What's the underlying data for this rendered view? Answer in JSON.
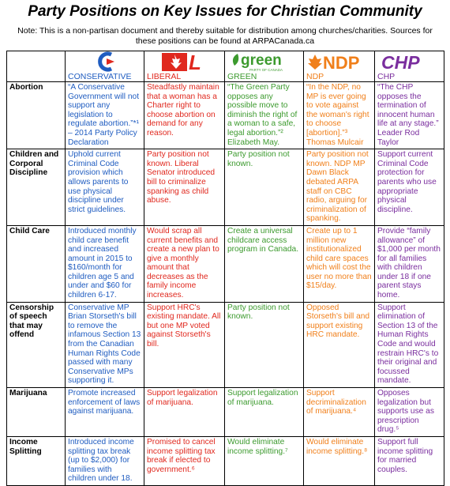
{
  "header": {
    "title": "Party Positions on Key Issues for Christian Community",
    "note": "Note: This is a non-partisan document and thereby suitable for distribution among churches/charities. Sources for these positions can be found at ARPACanada.ca"
  },
  "table": {
    "columns": [
      {
        "name": "CONSERVATIVE",
        "color": "#1f5cc0"
      },
      {
        "name": "LIBERAL",
        "color": "#e0281e",
        "logo_text": "L"
      },
      {
        "name": "GREEN",
        "color": "#3c9a2e",
        "logo_text": "green",
        "logo_subtext": "PARTY OF CANADA"
      },
      {
        "name": "NDP",
        "color": "#f07f1a",
        "logo_text": "NDP"
      },
      {
        "name": "CHP",
        "color": "#7a2e9e",
        "logo_text": "CHP"
      }
    ],
    "rows": [
      {
        "label": "Abortion",
        "cells": [
          "“A Conservative Government will not support any legislation to regulate abortion.”*¹ – 2014 Party Policy Declaration",
          "Steadfastly maintain that a woman has a Charter right to choose abortion on demand for any reason.",
          "“The Green Party opposes any possible move to diminish the right of a woman to a safe, legal abortion.”² Elizabeth May.",
          "“In the NDP, no MP is ever going to vote against the woman's right to choose [abortion].”³ Thomas Mulcair",
          "“The CHP opposes the termination of innocent human life at any stage.” Leader Rod Taylor"
        ]
      },
      {
        "label": "Children and Corporal Discipline",
        "cells": [
          "Uphold current Criminal Code provision which allows parents to use physical discipline under strict guidelines.",
          "Party position not known. Liberal Senator introduced bill to criminalize spanking as child abuse.",
          "Party position not known.",
          "Party position not known. NDP MP Dawn Black debated ARPA staff on CBC radio, arguing for criminalization of spanking.",
          "Support current Criminal Code protection for parents who use appropriate physical discipline."
        ]
      },
      {
        "label": "Child Care",
        "cells": [
          "Introduced monthly child care benefit and increased amount in 2015 to $160/month for children age 5 and under and $60 for children 6-17.",
          "Would scrap all current benefits and create a new plan to give a monthly amount that decreases as the family income increases.",
          "Create a universal childcare access program in Canada.",
          "Create up to 1 million new institutionalized child care spaces which will cost the user no more than $15/day.",
          "Provide “family allowance” of $1,000 per month for all families with children under 18 if one parent stays home."
        ]
      },
      {
        "label": "Censorship of speech that may offend",
        "cells": [
          "Conservative MP Brian Storseth's bill to remove the infamous Section 13 from the Canadian Human Rights Code passed with many Conservative MPs supporting it.",
          "Support HRC's existing mandate. All but one MP voted against Storseth's bill.",
          "Party position not known.",
          "Opposed Storseth's bill and support existing HRC mandate.",
          "Support elimination of Section 13 of the Human Rights Code and would restrain HRC's to their original and focussed mandate."
        ]
      },
      {
        "label": "Marijuana",
        "cells": [
          "Promote increased enforcement of laws against marijuana.",
          "Support legalization of marijuana.",
          "Support legalization of marijuana.",
          "Support decriminalization of marijuana.⁴",
          "Opposes legalization but supports use as prescription drug.⁵"
        ]
      },
      {
        "label": "Income Splitting",
        "cells": [
          "Introduced income splitting tax break (up to $2,000) for families with children under 18.",
          "Promised to cancel income splitting tax break if elected to government.⁶",
          "Would eliminate income splitting.⁷",
          "Would eliminate income splitting.⁸",
          "Support full income splitting for married couples."
        ]
      }
    ]
  }
}
